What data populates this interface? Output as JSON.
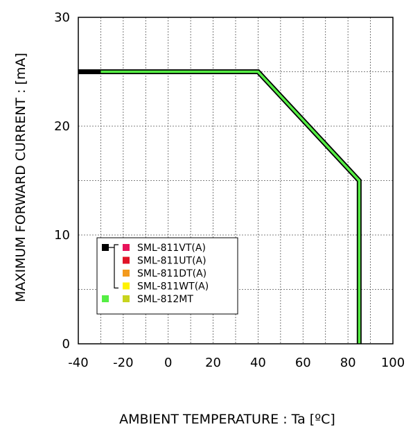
{
  "chart_data": {
    "type": "line",
    "xlabel": "AMBIENT TEMPERATURE : Ta [ºC]",
    "ylabel": "MAXIMUM FORWARD CURRENT :  [mA]",
    "xlim": [
      -40,
      100
    ],
    "ylim": [
      0,
      30
    ],
    "x_ticks": [
      "-40",
      "-20",
      "0",
      "20",
      "40",
      "60",
      "80",
      "100"
    ],
    "y_ticks": [
      "0",
      "10",
      "20",
      "30"
    ],
    "grid": true,
    "legend_position": "bottom-left",
    "series": [
      {
        "color": "#000000",
        "group": [
          "SML-811VT(A)",
          "SML-811UT(A)",
          "SML-811DT(A)",
          "SML-811WT(A)"
        ],
        "x": [
          -40,
          40,
          85,
          85
        ],
        "y": [
          25,
          25,
          15,
          0
        ]
      },
      {
        "color": "#55ee44",
        "group": [
          "SML-812MT"
        ],
        "x": [
          -30,
          40,
          85,
          85
        ],
        "y": [
          25,
          25,
          15,
          0
        ]
      }
    ],
    "legend": [
      {
        "label": "SML-811VT(A)",
        "color": "#e8125a"
      },
      {
        "label": "SML-811UT(A)",
        "color": "#e01428"
      },
      {
        "label": "SML-811DT(A)",
        "color": "#f39a1e"
      },
      {
        "label": "SML-811WT(A)",
        "color": "#fff200"
      },
      {
        "label": "SML-812MT",
        "color": "#c8d41e"
      }
    ],
    "legend_group_markers": [
      {
        "color": "#000000"
      },
      {
        "color": "#55ee44"
      }
    ]
  }
}
